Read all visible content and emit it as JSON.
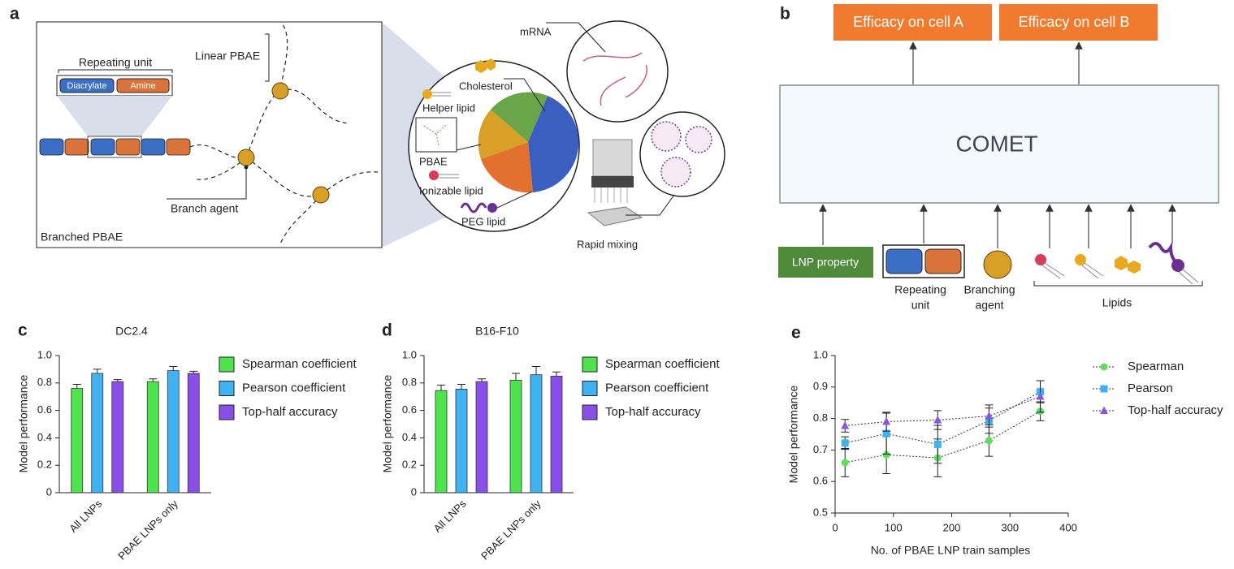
{
  "panels": {
    "a": {
      "letter": "a",
      "repeating_unit": "Repeating unit",
      "diacrylate": "Diacrylate",
      "amine": "Amine",
      "linear": "Linear PBAE",
      "branch_agent": "Branch agent",
      "branched": "Branched PBAE",
      "mrna": "mRNA",
      "cholesterol": "Cholesterol",
      "helper": "Helper lipid",
      "pbae": "PBAE",
      "ionizable": "Ionizable lipid",
      "peg": "PEG lipid",
      "mixing": "Rapid mixing"
    },
    "b": {
      "letter": "b",
      "out_a": "Efficacy on cell A",
      "out_b": "Efficacy on cell B",
      "model": "COMET",
      "lnp": "LNP property",
      "repeating": [
        "Repeating",
        "unit"
      ],
      "branching": [
        "Branching",
        "agent"
      ],
      "lipids": "Lipids"
    },
    "c": {
      "letter": "c"
    },
    "d": {
      "letter": "d"
    },
    "e": {
      "letter": "e"
    }
  },
  "chart_data": [
    {
      "type": "bar",
      "title": "DC2.4",
      "ylabel": "Model performance",
      "categories": [
        "All LNPs",
        "PBAE LNPs only"
      ],
      "ylim": [
        0,
        1
      ],
      "yticks": [
        0,
        0.2,
        0.4,
        0.6,
        0.8,
        {
          "value": 1,
          "label": "1.0"
        }
      ],
      "legend": "right",
      "series": [
        {
          "name": "Spearman coefficient",
          "color": "#4ee44e",
          "values": [
            0.76,
            0.81
          ],
          "errors": [
            0.03,
            0.02
          ]
        },
        {
          "name": "Pearson coefficient",
          "color": "#3fb2f2",
          "values": [
            0.87,
            0.89
          ],
          "errors": [
            0.03,
            0.03
          ]
        },
        {
          "name": "Top-half accuracy",
          "color": "#8a4fe8",
          "values": [
            0.81,
            0.87
          ],
          "errors": [
            0.015,
            0.015
          ]
        }
      ]
    },
    {
      "type": "bar",
      "title": "B16-F10",
      "ylabel": "Model performance",
      "categories": [
        "All LNPs",
        "PBAE LNPs only"
      ],
      "ylim": [
        0,
        1
      ],
      "yticks": [
        0,
        0.2,
        0.4,
        0.6,
        0.8,
        {
          "value": 1,
          "label": "1.0"
        }
      ],
      "legend": "right",
      "series": [
        {
          "name": "Spearman coefficient",
          "color": "#4ee44e",
          "values": [
            0.745,
            0.82
          ],
          "errors": [
            0.04,
            0.05
          ]
        },
        {
          "name": "Pearson coefficient",
          "color": "#3fb2f2",
          "values": [
            0.755,
            0.86
          ],
          "errors": [
            0.035,
            0.06
          ]
        },
        {
          "name": "Top-half accuracy",
          "color": "#8a4fe8",
          "values": [
            0.81,
            0.85
          ],
          "errors": [
            0.02,
            0.03
          ]
        }
      ]
    },
    {
      "type": "line",
      "xlabel": "No. of PBAE LNP train samples",
      "ylabel": "Model performance",
      "x": [
        17,
        88,
        176,
        264,
        352
      ],
      "xlim": [
        0,
        400
      ],
      "xticks": [
        0,
        100,
        200,
        300,
        400
      ],
      "ylim": [
        0.5,
        1
      ],
      "yticks": [
        0.5,
        0.6,
        0.7,
        0.8,
        0.9,
        {
          "value": 1,
          "label": "1.0"
        }
      ],
      "legend": "right",
      "series": [
        {
          "name": "Spearman",
          "color": "#5ce05c",
          "marker": "circle",
          "values": [
            0.66,
            0.685,
            0.675,
            0.73,
            0.823
          ],
          "errors": [
            0.045,
            0.06,
            0.06,
            0.05,
            0.03
          ]
        },
        {
          "name": "Pearson",
          "color": "#3fb2f2",
          "marker": "square",
          "values": [
            0.722,
            0.752,
            0.718,
            0.793,
            0.885
          ],
          "errors": [
            0.02,
            0.065,
            0.06,
            0.04,
            0.035
          ]
        },
        {
          "name": "Top-half accuracy",
          "color": "#8a55e0",
          "marker": "triangle",
          "values": [
            0.777,
            0.79,
            0.795,
            0.808,
            0.87
          ],
          "errors": [
            0.02,
            0.03,
            0.03,
            0.035,
            0.05
          ]
        }
      ]
    }
  ]
}
